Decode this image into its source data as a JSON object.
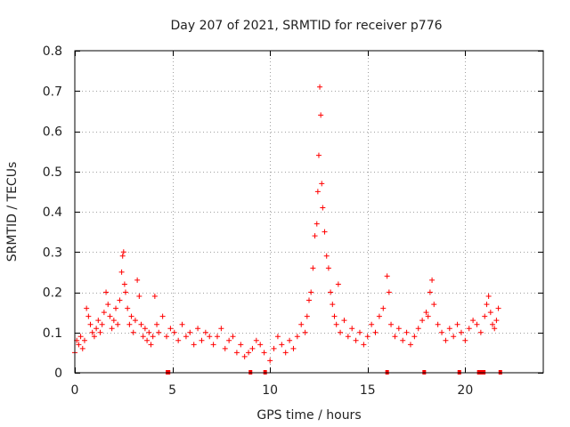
{
  "chart_data": {
    "type": "scatter",
    "title": "Day 207 of 2021, SRMTID for receiver p776",
    "xlabel": "GPS time / hours",
    "ylabel": "SRMTID / TECUs",
    "xlim": [
      0,
      24
    ],
    "ylim": [
      0,
      0.8
    ],
    "xticks": [
      "0",
      "5",
      "10",
      "15",
      "20"
    ],
    "yticks": [
      "0",
      "0.1",
      "0.2",
      "0.3",
      "0.4",
      "0.5",
      "0.6",
      "0.7",
      "0.8"
    ],
    "grid": true,
    "marker": "+",
    "color": "#ff0000",
    "series": [
      {
        "name": "SRMTID",
        "x": [
          0.0,
          0.1,
          0.2,
          0.3,
          0.4,
          0.5,
          0.6,
          0.7,
          0.8,
          0.9,
          1.0,
          1.1,
          1.2,
          1.3,
          1.4,
          1.5,
          1.6,
          1.7,
          1.8,
          1.9,
          2.0,
          2.1,
          2.2,
          2.3,
          2.4,
          2.45,
          2.5,
          2.55,
          2.6,
          2.7,
          2.8,
          2.9,
          3.0,
          3.1,
          3.2,
          3.3,
          3.4,
          3.5,
          3.6,
          3.7,
          3.8,
          3.9,
          4.0,
          4.1,
          4.2,
          4.3,
          4.5,
          4.7,
          4.9,
          5.1,
          5.3,
          5.5,
          5.7,
          5.9,
          6.1,
          6.3,
          6.5,
          6.7,
          6.9,
          7.1,
          7.3,
          7.5,
          7.7,
          7.9,
          8.1,
          8.3,
          8.5,
          8.7,
          8.9,
          9.1,
          9.3,
          9.5,
          9.7,
          10.0,
          10.2,
          10.4,
          10.6,
          10.8,
          11.0,
          11.2,
          11.4,
          11.6,
          11.8,
          11.9,
          12.0,
          12.1,
          12.2,
          12.3,
          12.4,
          12.45,
          12.5,
          12.55,
          12.6,
          12.65,
          12.7,
          12.8,
          12.9,
          13.0,
          13.1,
          13.2,
          13.3,
          13.4,
          13.5,
          13.6,
          13.8,
          14.0,
          14.2,
          14.4,
          14.6,
          14.8,
          15.0,
          15.2,
          15.4,
          15.6,
          15.8,
          16.0,
          16.1,
          16.2,
          16.4,
          16.6,
          16.8,
          17.0,
          17.2,
          17.4,
          17.6,
          17.8,
          18.0,
          18.1,
          18.2,
          18.3,
          18.4,
          18.6,
          18.8,
          19.0,
          19.2,
          19.4,
          19.6,
          19.8,
          20.0,
          20.2,
          20.4,
          20.6,
          20.8,
          21.0,
          21.1,
          21.2,
          21.3,
          21.4,
          21.5,
          21.6,
          21.7
        ],
        "y": [
          0.05,
          0.08,
          0.07,
          0.09,
          0.06,
          0.08,
          0.16,
          0.14,
          0.12,
          0.1,
          0.09,
          0.11,
          0.13,
          0.1,
          0.12,
          0.15,
          0.2,
          0.17,
          0.14,
          0.11,
          0.13,
          0.16,
          0.12,
          0.18,
          0.25,
          0.29,
          0.3,
          0.22,
          0.2,
          0.16,
          0.12,
          0.14,
          0.1,
          0.13,
          0.23,
          0.19,
          0.12,
          0.09,
          0.11,
          0.08,
          0.1,
          0.07,
          0.09,
          0.19,
          0.12,
          0.1,
          0.14,
          0.09,
          0.11,
          0.1,
          0.08,
          0.12,
          0.09,
          0.1,
          0.07,
          0.11,
          0.08,
          0.1,
          0.09,
          0.07,
          0.09,
          0.11,
          0.06,
          0.08,
          0.09,
          0.05,
          0.07,
          0.04,
          0.05,
          0.06,
          0.08,
          0.07,
          0.05,
          0.03,
          0.06,
          0.09,
          0.07,
          0.05,
          0.08,
          0.06,
          0.09,
          0.12,
          0.1,
          0.14,
          0.18,
          0.2,
          0.26,
          0.34,
          0.37,
          0.45,
          0.54,
          0.71,
          0.64,
          0.47,
          0.41,
          0.35,
          0.29,
          0.26,
          0.2,
          0.17,
          0.14,
          0.12,
          0.22,
          0.1,
          0.13,
          0.09,
          0.11,
          0.08,
          0.1,
          0.07,
          0.09,
          0.12,
          0.1,
          0.14,
          0.16,
          0.24,
          0.2,
          0.12,
          0.09,
          0.11,
          0.08,
          0.1,
          0.07,
          0.09,
          0.11,
          0.13,
          0.15,
          0.14,
          0.2,
          0.23,
          0.17,
          0.12,
          0.1,
          0.08,
          0.11,
          0.09,
          0.12,
          0.1,
          0.08,
          0.11,
          0.13,
          0.12,
          0.1,
          0.14,
          0.17,
          0.19,
          0.15,
          0.12,
          0.11,
          0.13,
          0.16
        ]
      }
    ],
    "gaps_x": [
      4.75,
      4.8,
      9.0,
      9.75,
      16.0,
      17.9,
      19.7,
      20.7,
      20.85,
      20.95,
      21.8
    ]
  }
}
